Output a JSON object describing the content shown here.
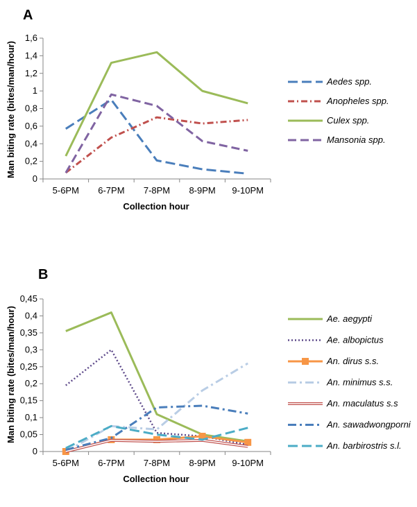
{
  "chart_data": [
    {
      "panel": "A",
      "type": "line",
      "xlabel": "Collection hour",
      "ylabel": "Man biting rate (bites/man/hour)",
      "categories": [
        "5-6PM",
        "6-7PM",
        "7-8PM",
        "8-9PM",
        "9-10PM"
      ],
      "ylim": [
        0,
        1.6
      ],
      "yticks": [
        "0",
        "0,2",
        "0,4",
        "0,6",
        "0,8",
        "1",
        "1,2",
        "1,4",
        "1,6"
      ],
      "legend_position": "right",
      "grid": false,
      "series": [
        {
          "name": "Aedes spp.",
          "values": [
            0.57,
            0.9,
            0.21,
            0.11,
            0.06
          ],
          "color": "#4a7ebb",
          "dash": "14 6"
        },
        {
          "name": "Anopheles spp.",
          "values": [
            0.07,
            0.47,
            0.7,
            0.63,
            0.67
          ],
          "color": "#c0504d",
          "dash": "9 4 2 4"
        },
        {
          "name": "Culex spp.",
          "values": [
            0.26,
            1.32,
            1.44,
            1.0,
            0.86
          ],
          "color": "#9bbb59",
          "dash": ""
        },
        {
          "name": "Mansonia spp.",
          "values": [
            0.07,
            0.96,
            0.83,
            0.43,
            0.32
          ],
          "color": "#8064a2",
          "dash": "12 6"
        }
      ]
    },
    {
      "panel": "B",
      "type": "line",
      "xlabel": "Collection hour",
      "ylabel": "Man biting rate (bites/man/hour)",
      "categories": [
        "5-6PM",
        "6-7PM",
        "7-8PM",
        "8-9PM",
        "9-10PM"
      ],
      "ylim": [
        0,
        0.45
      ],
      "yticks": [
        "0",
        "0,05",
        "0,1",
        "0,15",
        "0,2",
        "0,25",
        "0,3",
        "0,35",
        "0,4",
        "0,45"
      ],
      "legend_position": "right",
      "grid": false,
      "series": [
        {
          "name": "Ae. aegypti",
          "values": [
            0.355,
            0.41,
            0.11,
            0.05,
            0.03
          ],
          "color": "#9bbb59",
          "style": "solid"
        },
        {
          "name": "Ae. albopictus",
          "values": [
            0.195,
            0.3,
            0.055,
            0.045,
            0.02
          ],
          "color": "#5f4b8b",
          "style": "dotted"
        },
        {
          "name": "An. dirus s.s.",
          "values": [
            0.0,
            0.035,
            0.035,
            0.045,
            0.027
          ],
          "color": "#f79646",
          "style": "square"
        },
        {
          "name": "An. minimus s.s.",
          "values": [
            0.0,
            0.075,
            0.065,
            0.18,
            0.26
          ],
          "color": "#b9cde5",
          "style": "dashdot"
        },
        {
          "name": "An. maculatus s.s",
          "values": [
            0.0,
            0.033,
            0.03,
            0.033,
            0.015
          ],
          "color": "#c0504d",
          "style": "double"
        },
        {
          "name": "An. sawadwongporni",
          "values": [
            0.005,
            0.04,
            0.13,
            0.135,
            0.112
          ],
          "color": "#4a7ebb",
          "style": "dashdot"
        },
        {
          "name": "An. barbirostris s.l.",
          "values": [
            0.01,
            0.075,
            0.05,
            0.035,
            0.07
          ],
          "color": "#4bacc6",
          "style": "dashed"
        }
      ]
    }
  ]
}
